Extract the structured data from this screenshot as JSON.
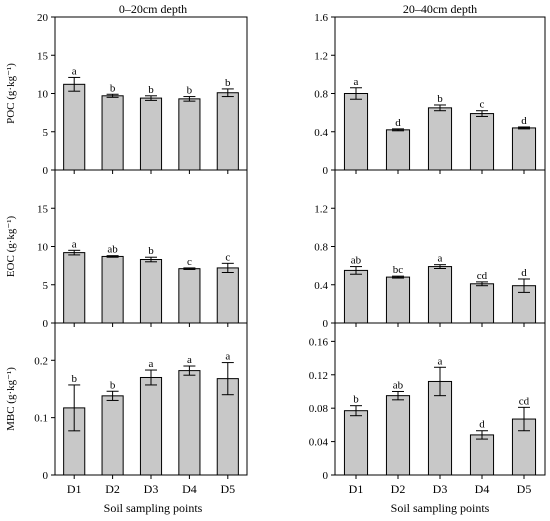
{
  "figure": {
    "column_titles": [
      "0–20cm depth",
      "20–40cm depth"
    ],
    "x_axis_label": "Soil sampling points",
    "colors": {
      "bar_fill": "#c8c8c8",
      "bar_stroke": "#000000",
      "axis": "#000000"
    }
  },
  "chart_data": [
    {
      "type": "bar",
      "panel": "POC 0-20cm",
      "title": "0–20cm depth",
      "categories": [
        "D1",
        "D2",
        "D3",
        "D4",
        "D5"
      ],
      "values": [
        11.2,
        9.7,
        9.4,
        9.3,
        10.1
      ],
      "errors": [
        0.9,
        0.2,
        0.3,
        0.3,
        0.5
      ],
      "annotations": [
        "a",
        "b",
        "b",
        "b",
        "b"
      ],
      "ylabel": "POC (g·kg⁻¹)",
      "ylim": [
        0,
        20
      ],
      "yticks": [
        0,
        5,
        10,
        15,
        20
      ],
      "ytick_labels": [
        "0",
        "5",
        "10",
        "15",
        "20"
      ],
      "show_xticklabels": false
    },
    {
      "type": "bar",
      "panel": "POC 20-40cm",
      "title": "20–40cm depth",
      "categories": [
        "D1",
        "D2",
        "D3",
        "D4",
        "D5"
      ],
      "values": [
        0.8,
        0.42,
        0.65,
        0.59,
        0.44
      ],
      "errors": [
        0.06,
        0.01,
        0.03,
        0.03,
        0.01
      ],
      "annotations": [
        "a",
        "d",
        "b",
        "c",
        "d"
      ],
      "ylabel": "",
      "ylim": [
        0,
        1.6
      ],
      "yticks": [
        0,
        0.4,
        0.8,
        1.2,
        1.6
      ],
      "ytick_labels": [
        "0",
        "0.4",
        "0.8",
        "1.2",
        "1.6"
      ],
      "show_xticklabels": false
    },
    {
      "type": "bar",
      "panel": "EOC 0-20cm",
      "categories": [
        "D1",
        "D2",
        "D3",
        "D4",
        "D5"
      ],
      "values": [
        9.2,
        8.7,
        8.3,
        7.1,
        7.2
      ],
      "errors": [
        0.3,
        0.1,
        0.3,
        0.1,
        0.6
      ],
      "annotations": [
        "a",
        "ab",
        "b",
        "c",
        "c"
      ],
      "ylabel": "EOC (g·kg⁻¹)",
      "ylim": [
        0,
        20
      ],
      "yticks": [
        0,
        5,
        10,
        15
      ],
      "ytick_labels": [
        "0",
        "5",
        "10",
        "15"
      ],
      "show_xticklabels": false
    },
    {
      "type": "bar",
      "panel": "EOC 20-40cm",
      "categories": [
        "D1",
        "D2",
        "D3",
        "D4",
        "D5"
      ],
      "values": [
        0.55,
        0.48,
        0.59,
        0.41,
        0.39
      ],
      "errors": [
        0.04,
        0.01,
        0.02,
        0.02,
        0.07
      ],
      "annotations": [
        "ab",
        "bc",
        "a",
        "cd",
        "d"
      ],
      "ylabel": "",
      "ylim": [
        0,
        1.6
      ],
      "yticks": [
        0,
        0.4,
        0.8,
        1.2
      ],
      "ytick_labels": [
        "0",
        "0.4",
        "0.8",
        "1.2"
      ],
      "show_xticklabels": false
    },
    {
      "type": "bar",
      "panel": "MBC 0-20cm",
      "categories": [
        "D1",
        "D2",
        "D3",
        "D4",
        "D5"
      ],
      "values": [
        0.117,
        0.138,
        0.17,
        0.182,
        0.168
      ],
      "errors": [
        0.04,
        0.008,
        0.013,
        0.008,
        0.028
      ],
      "annotations": [
        "b",
        "b",
        "a",
        "a",
        "a"
      ],
      "ylabel": "MBC (g·kg⁻¹)",
      "ylim": [
        0,
        0.265
      ],
      "yticks": [
        0,
        0.1,
        0.2
      ],
      "ytick_labels": [
        "0",
        "0.1",
        "0.2"
      ],
      "show_xticklabels": true
    },
    {
      "type": "bar",
      "panel": "MBC 20-40cm",
      "categories": [
        "D1",
        "D2",
        "D3",
        "D4",
        "D5"
      ],
      "values": [
        0.077,
        0.095,
        0.112,
        0.048,
        0.067
      ],
      "errors": [
        0.006,
        0.005,
        0.017,
        0.005,
        0.014
      ],
      "annotations": [
        "b",
        "ab",
        "a",
        "d",
        "cd"
      ],
      "ylabel": "",
      "ylim": [
        0,
        0.182
      ],
      "yticks": [
        0,
        0.04,
        0.08,
        0.12,
        0.16
      ],
      "ytick_labels": [
        "0",
        "0.04",
        "0.08",
        "0.12",
        "0.16"
      ],
      "show_xticklabels": true
    }
  ]
}
